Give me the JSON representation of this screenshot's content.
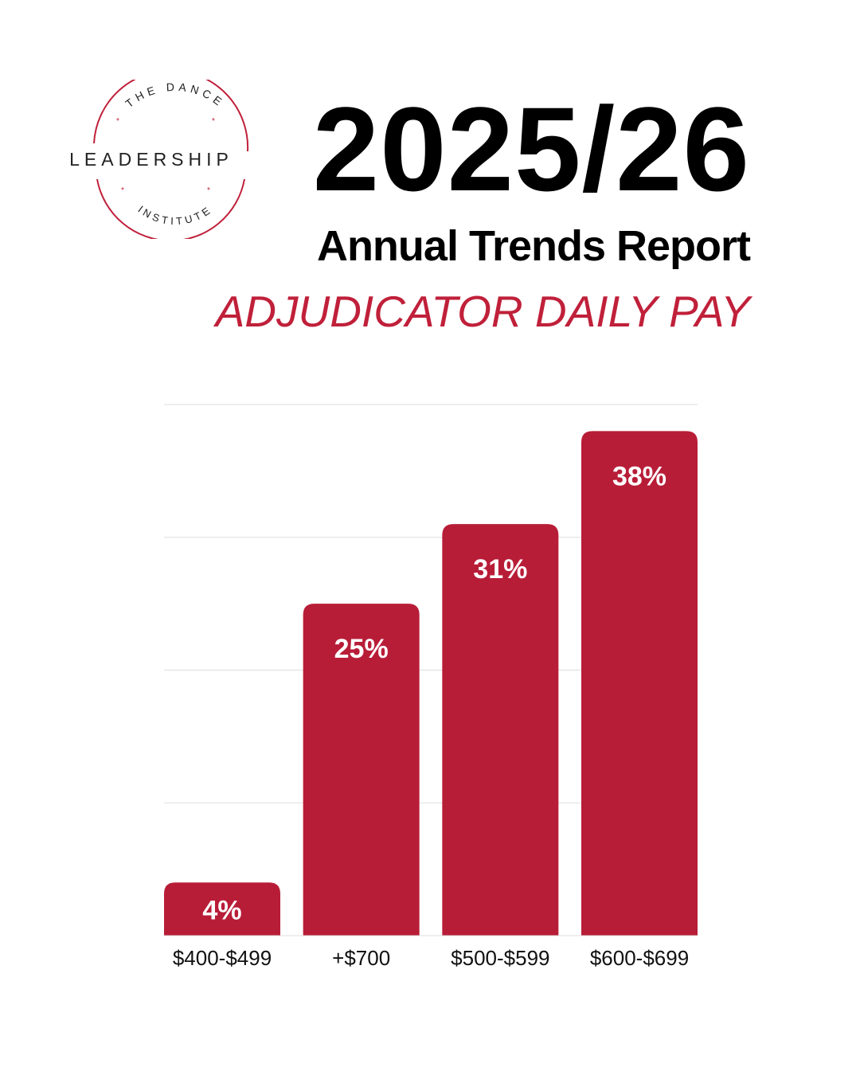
{
  "logo": {
    "top_text": "THE DANCE",
    "main_text": "LEADERSHIP",
    "bottom_text": "INSTITUTE",
    "ring_color": "#c0203a",
    "text_color": "#222222"
  },
  "header": {
    "year": "2025/26",
    "title": "Annual Trends Report",
    "section": "ADJUDICATOR DAILY PAY"
  },
  "colors": {
    "accent": "#c0203a",
    "bar": "#b81d38",
    "grid": "#dddddd",
    "text": "#000000"
  },
  "chart_data": {
    "type": "bar",
    "categories": [
      "$400-$499",
      "+$700",
      "$500-$599",
      "$600-$699"
    ],
    "values": [
      4,
      25,
      31,
      38
    ],
    "data_labels": [
      "4%",
      "25%",
      "31%",
      "38%"
    ],
    "title": "",
    "xlabel": "",
    "ylabel": "",
    "ylim": [
      0,
      40
    ],
    "gridlines": [
      10,
      20,
      30,
      40
    ],
    "grid": true,
    "legend": "none"
  }
}
